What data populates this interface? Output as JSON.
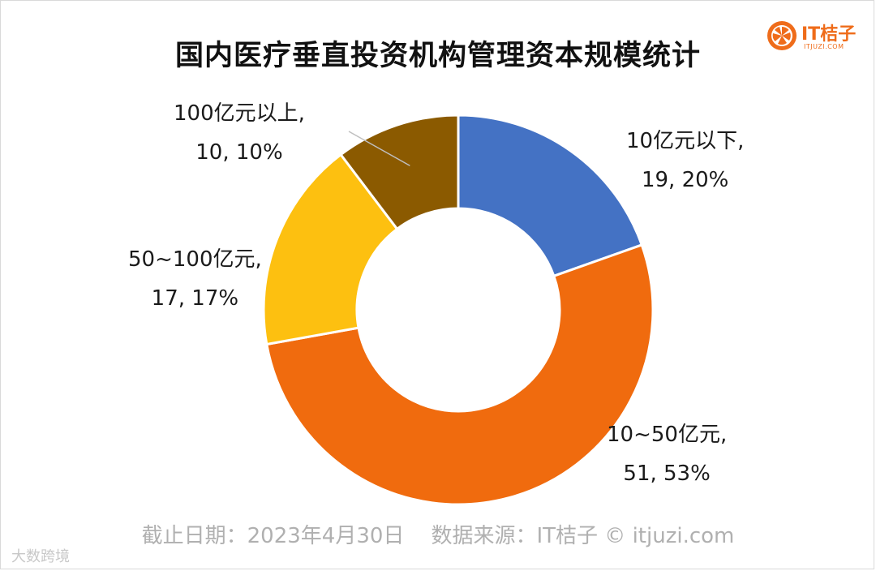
{
  "title": "国内医疗垂直投资机构管理资本规模统计",
  "logo": {
    "brand": "IT桔子",
    "sub": "ITJUZI.COM"
  },
  "footer": "截止日期：2023年4月30日    数据来源：IT桔子 © itjuzi.com",
  "corner": "大数跨境",
  "colors": {
    "blue": "#4472c4",
    "orange": "#f06b0e",
    "yellow": "#fdc010",
    "brown": "#8b5a00",
    "accent": "#ef6c1a"
  },
  "chart_data": {
    "type": "pie",
    "donut": true,
    "title": "国内医疗垂直投资机构管理资本规模统计",
    "slices": [
      {
        "label": "10亿元以下",
        "value": 19,
        "percent": "20%",
        "color": "#4472c4"
      },
      {
        "label": "10~50亿元",
        "value": 51,
        "percent": "53%",
        "color": "#f06b0e"
      },
      {
        "label": "50~100亿元",
        "value": 17,
        "percent": "17%",
        "color": "#fdc010"
      },
      {
        "label": "100亿元以上",
        "value": 10,
        "percent": "10%",
        "color": "#8b5a00"
      }
    ],
    "data_labels": [
      {
        "line1": "10亿元以下,",
        "line2": "19, 20%"
      },
      {
        "line1": "10~50亿元,",
        "line2": "51, 53%"
      },
      {
        "line1": "50~100亿元,",
        "line2": "17, 17%"
      },
      {
        "line1": "100亿元以上,",
        "line2": "10, 10%"
      }
    ]
  }
}
